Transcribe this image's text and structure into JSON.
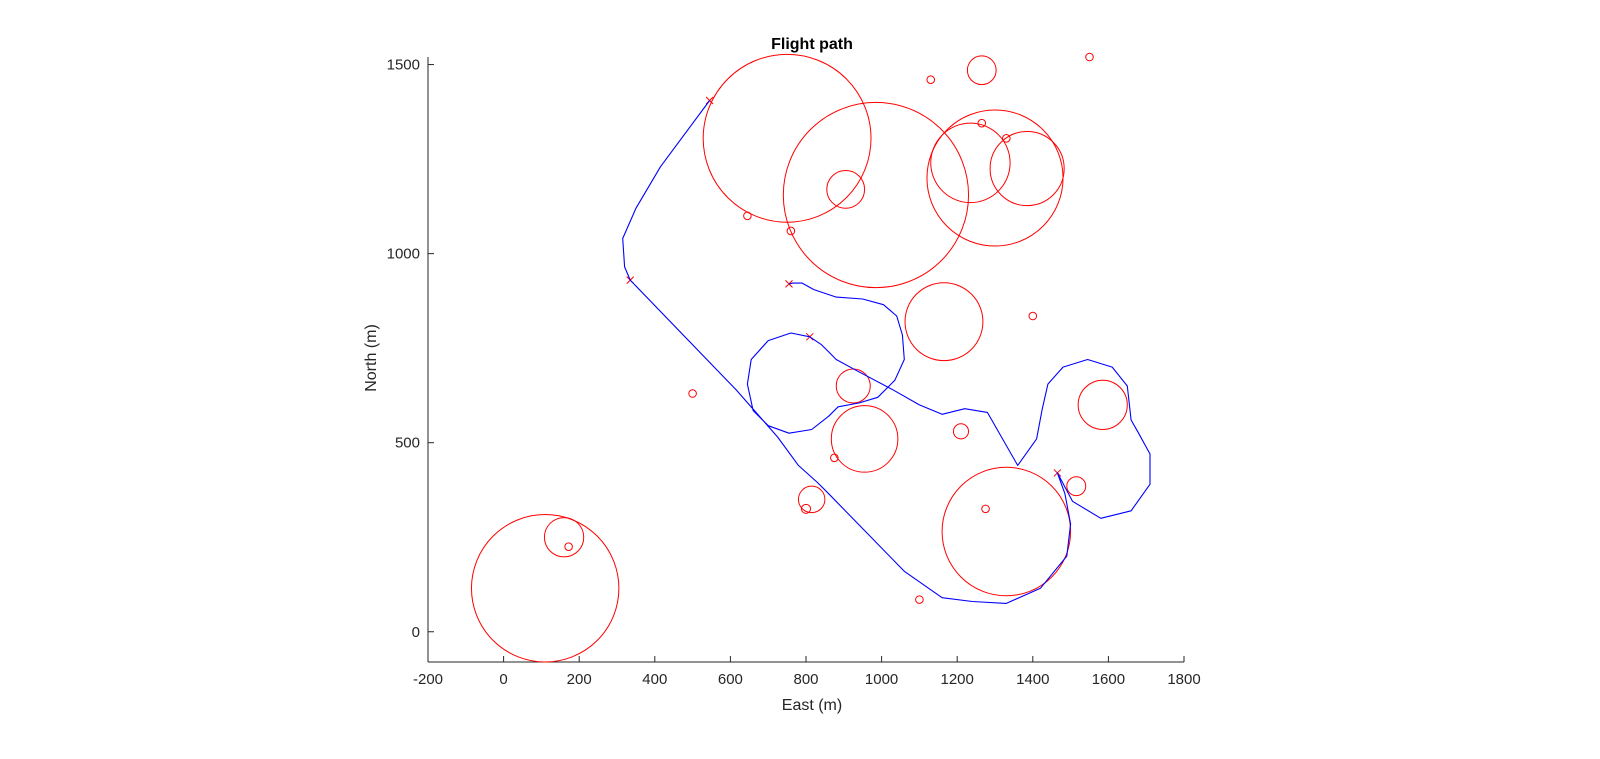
{
  "chart_data": {
    "type": "scatter",
    "title": "Flight path",
    "xlabel": "East (m)",
    "ylabel": "North (m)",
    "xlim": [
      -200,
      1800
    ],
    "ylim": [
      -80,
      1520
    ],
    "xticks": [
      -200,
      0,
      200,
      400,
      600,
      800,
      1000,
      1200,
      1400,
      1600,
      1800
    ],
    "yticks": [
      0,
      500,
      1000,
      1500
    ],
    "aspect": "equal",
    "grid": false,
    "colors": {
      "obstacles": "#ff0000",
      "path": "#0000ff",
      "axis": "#262626"
    },
    "series": [
      {
        "name": "obstacles",
        "kind": "circles",
        "circles": [
          {
            "x": 110,
            "y": 115,
            "r": 195
          },
          {
            "x": 160,
            "y": 250,
            "r": 52
          },
          {
            "x": 172,
            "y": 225,
            "r": 10
          },
          {
            "x": 750,
            "y": 1305,
            "r": 222
          },
          {
            "x": 985,
            "y": 1155,
            "r": 245
          },
          {
            "x": 905,
            "y": 1170,
            "r": 50
          },
          {
            "x": 645,
            "y": 1100,
            "r": 10
          },
          {
            "x": 760,
            "y": 1060,
            "r": 10
          },
          {
            "x": 1300,
            "y": 1200,
            "r": 180
          },
          {
            "x": 1235,
            "y": 1240,
            "r": 105
          },
          {
            "x": 1385,
            "y": 1225,
            "r": 98
          },
          {
            "x": 1265,
            "y": 1485,
            "r": 38
          },
          {
            "x": 1130,
            "y": 1460,
            "r": 10
          },
          {
            "x": 1265,
            "y": 1345,
            "r": 10
          },
          {
            "x": 1330,
            "y": 1305,
            "r": 10
          },
          {
            "x": 1550,
            "y": 1520,
            "r": 10
          },
          {
            "x": 1165,
            "y": 820,
            "r": 103
          },
          {
            "x": 1400,
            "y": 835,
            "r": 10
          },
          {
            "x": 925,
            "y": 650,
            "r": 45
          },
          {
            "x": 955,
            "y": 510,
            "r": 88
          },
          {
            "x": 1210,
            "y": 530,
            "r": 20
          },
          {
            "x": 500,
            "y": 630,
            "r": 10
          },
          {
            "x": 875,
            "y": 460,
            "r": 10
          },
          {
            "x": 815,
            "y": 350,
            "r": 35
          },
          {
            "x": 800,
            "y": 325,
            "r": 12
          },
          {
            "x": 1330,
            "y": 265,
            "r": 170
          },
          {
            "x": 1275,
            "y": 325,
            "r": 10
          },
          {
            "x": 1515,
            "y": 385,
            "r": 25
          },
          {
            "x": 1585,
            "y": 600,
            "r": 65
          },
          {
            "x": 1100,
            "y": 85,
            "r": 10
          }
        ]
      },
      {
        "name": "waypoints",
        "kind": "markers",
        "marker": "x",
        "points": [
          {
            "x": 545,
            "y": 1405
          },
          {
            "x": 335,
            "y": 930
          },
          {
            "x": 755,
            "y": 920
          },
          {
            "x": 810,
            "y": 780
          },
          {
            "x": 1465,
            "y": 420
          }
        ]
      },
      {
        "name": "path",
        "kind": "line",
        "points": [
          {
            "x": 545,
            "y": 1405
          },
          {
            "x": 415,
            "y": 1230
          },
          {
            "x": 350,
            "y": 1120
          },
          {
            "x": 315,
            "y": 1040
          },
          {
            "x": 320,
            "y": 965
          },
          {
            "x": 335,
            "y": 930
          },
          {
            "x": 615,
            "y": 640
          },
          {
            "x": 725,
            "y": 515
          },
          {
            "x": 780,
            "y": 440
          },
          {
            "x": 830,
            "y": 395
          },
          {
            "x": 855,
            "y": 370
          },
          {
            "x": 1060,
            "y": 160
          },
          {
            "x": 1160,
            "y": 90
          },
          {
            "x": 1240,
            "y": 80
          },
          {
            "x": 1330,
            "y": 75
          },
          {
            "x": 1420,
            "y": 115
          },
          {
            "x": 1490,
            "y": 200
          },
          {
            "x": 1500,
            "y": 285
          },
          {
            "x": 1485,
            "y": 365
          },
          {
            "x": 1465,
            "y": 420
          },
          {
            "x": 1505,
            "y": 345
          },
          {
            "x": 1580,
            "y": 300
          },
          {
            "x": 1660,
            "y": 320
          },
          {
            "x": 1710,
            "y": 390
          },
          {
            "x": 1710,
            "y": 470
          },
          {
            "x": 1680,
            "y": 525
          },
          {
            "x": 1660,
            "y": 560
          },
          {
            "x": 1650,
            "y": 650
          },
          {
            "x": 1610,
            "y": 700
          },
          {
            "x": 1545,
            "y": 720
          },
          {
            "x": 1480,
            "y": 700
          },
          {
            "x": 1440,
            "y": 655
          },
          {
            "x": 1425,
            "y": 590
          },
          {
            "x": 1410,
            "y": 510
          },
          {
            "x": 1360,
            "y": 440
          },
          {
            "x": 1280,
            "y": 580
          },
          {
            "x": 1220,
            "y": 590
          },
          {
            "x": 1160,
            "y": 575
          },
          {
            "x": 1100,
            "y": 600
          },
          {
            "x": 1030,
            "y": 640
          },
          {
            "x": 935,
            "y": 690
          },
          {
            "x": 880,
            "y": 720
          },
          {
            "x": 860,
            "y": 740
          },
          {
            "x": 840,
            "y": 760
          },
          {
            "x": 810,
            "y": 780
          },
          {
            "x": 760,
            "y": 790
          },
          {
            "x": 700,
            "y": 770
          },
          {
            "x": 655,
            "y": 720
          },
          {
            "x": 645,
            "y": 655
          },
          {
            "x": 660,
            "y": 585
          },
          {
            "x": 700,
            "y": 545
          },
          {
            "x": 755,
            "y": 525
          },
          {
            "x": 815,
            "y": 535
          },
          {
            "x": 860,
            "y": 570
          },
          {
            "x": 885,
            "y": 595
          },
          {
            "x": 940,
            "y": 605
          },
          {
            "x": 990,
            "y": 620
          },
          {
            "x": 1035,
            "y": 665
          },
          {
            "x": 1060,
            "y": 720
          },
          {
            "x": 1055,
            "y": 785
          },
          {
            "x": 1040,
            "y": 835
          },
          {
            "x": 1005,
            "y": 865
          },
          {
            "x": 950,
            "y": 880
          },
          {
            "x": 880,
            "y": 885
          },
          {
            "x": 820,
            "y": 905
          },
          {
            "x": 790,
            "y": 922
          },
          {
            "x": 765,
            "y": 922
          },
          {
            "x": 755,
            "y": 920
          }
        ]
      }
    ]
  }
}
